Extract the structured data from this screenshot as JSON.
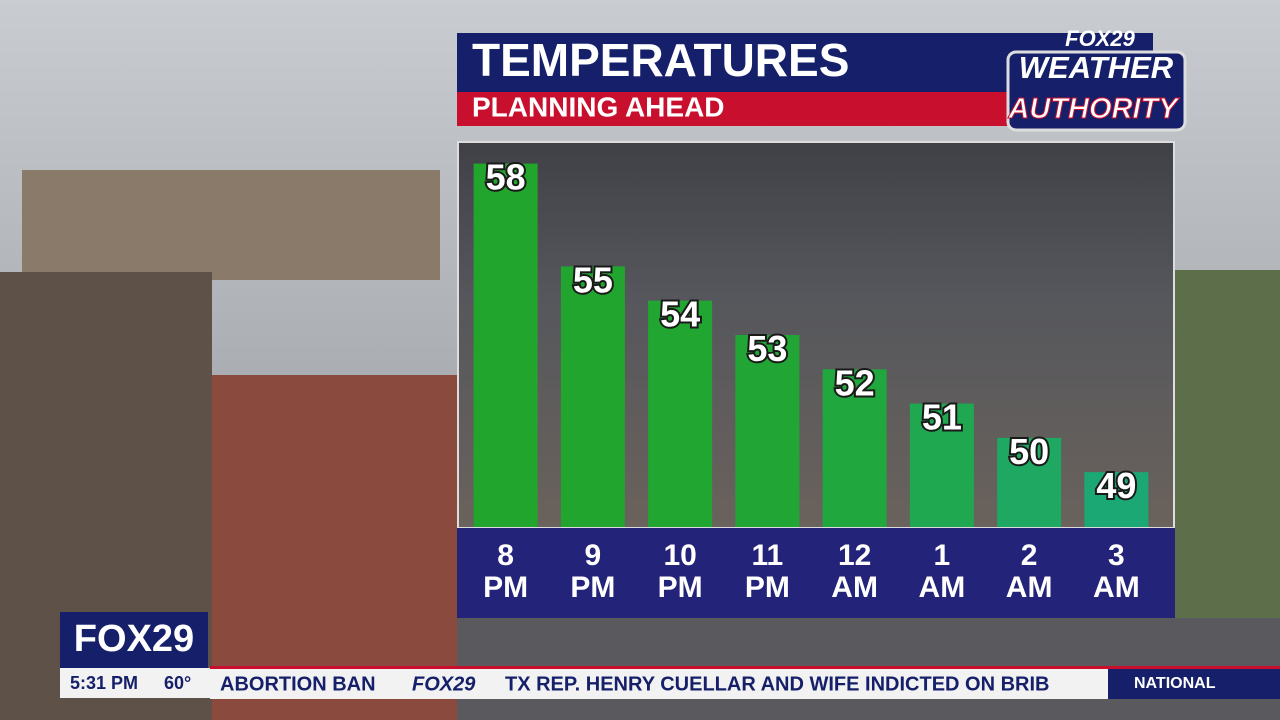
{
  "chart_data": {
    "type": "bar",
    "title": "TEMPERATURES",
    "subtitle": "PLANNING AHEAD",
    "categories": [
      "8 PM",
      "9 PM",
      "10 PM",
      "11 PM",
      "12 AM",
      "1 AM",
      "2 AM",
      "3 AM"
    ],
    "values": [
      58,
      55,
      54,
      53,
      52,
      51,
      50,
      49
    ],
    "colors": [
      "#22a52c",
      "#22a52e",
      "#21a631",
      "#21a636",
      "#20a73e",
      "#1fa84f",
      "#1ea862",
      "#1ca874"
    ],
    "ylim": [
      47.4,
      58.6
    ]
  },
  "branding": {
    "station": "FOX29",
    "weather": "WEATHER",
    "authority": "AUTHORITY"
  },
  "ticker": {
    "logo": "FOX29",
    "time": "5:31 PM",
    "temp": "60°",
    "topic": "ABORTION BAN",
    "ticker_logo": "FOX29",
    "headline": "TX REP. HENRY CUELLAR AND WIFE INDICTED ON BRIB",
    "section": "NATIONAL"
  }
}
